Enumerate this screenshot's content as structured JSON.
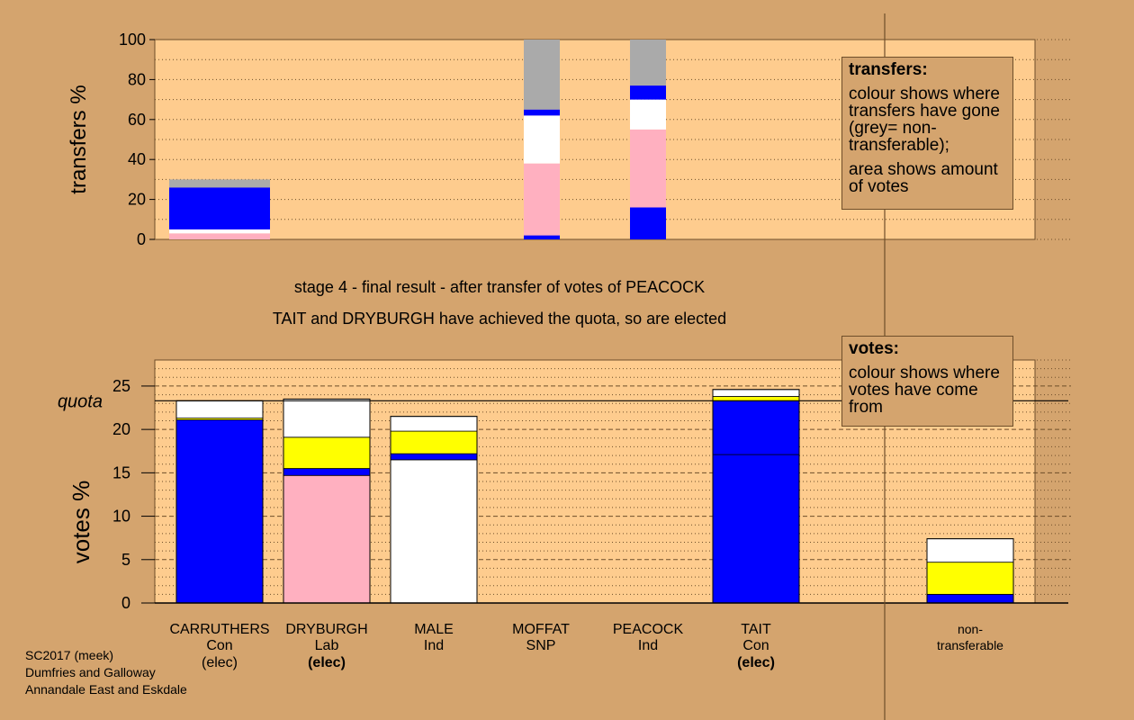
{
  "stage_text": "stage 4 - final result - after transfer of votes of PEACOCK",
  "elected_text": "TAIT and DRYBURGH have achieved the quota, so are elected",
  "legend_transfers": {
    "title": "transfers:",
    "line1": "colour shows where transfers have gone (grey= non-transferable);",
    "line2": "area shows amount of votes"
  },
  "legend_votes": {
    "title": "votes:",
    "line1": "colour shows where votes have come from"
  },
  "footer": {
    "line1": "SC2017 (meek)",
    "line2": "Dumfries and Galloway",
    "line3": "Annandale East and Eskdale"
  },
  "colors": {
    "Con": "#0000ff",
    "Lab": "#ffb0c0",
    "Ind": "#ffffff",
    "SNP": "#ffff00",
    "nontransferable": "#aaaaaa",
    "background": "#d4a46e",
    "plot": "#fecc8e"
  },
  "chart_data": [
    {
      "type": "bar",
      "ylabel": "transfers %",
      "ylim": [
        0,
        100
      ],
      "yticks": [
        0,
        20,
        40,
        60,
        80,
        100
      ],
      "bars": [
        {
          "candidate": "CARRUTHERS",
          "segments": [
            {
              "color": "#ffb0c0",
              "from": 0,
              "to": 3
            },
            {
              "color": "#ffffff",
              "from": 3,
              "to": 5
            },
            {
              "color": "#0000ff",
              "from": 5,
              "to": 26
            },
            {
              "color": "#aaaaaa",
              "from": 26,
              "to": 30
            }
          ]
        },
        {
          "candidate": "MOFFAT",
          "segments": [
            {
              "color": "#0000ff",
              "from": 0,
              "to": 2
            },
            {
              "color": "#ffb0c0",
              "from": 2,
              "to": 38
            },
            {
              "color": "#ffffff",
              "from": 38,
              "to": 62
            },
            {
              "color": "#0000ff",
              "from": 62,
              "to": 65
            },
            {
              "color": "#aaaaaa",
              "from": 65,
              "to": 100
            }
          ]
        },
        {
          "candidate": "PEACOCK",
          "segments": [
            {
              "color": "#0000ff",
              "from": 0,
              "to": 16
            },
            {
              "color": "#ffb0c0",
              "from": 16,
              "to": 55
            },
            {
              "color": "#ffffff",
              "from": 55,
              "to": 70
            },
            {
              "color": "#0000ff",
              "from": 70,
              "to": 77
            },
            {
              "color": "#aaaaaa",
              "from": 77,
              "to": 100
            }
          ]
        }
      ]
    },
    {
      "type": "bar",
      "ylabel": "votes %",
      "ylim": [
        0,
        28
      ],
      "yticks": [
        0,
        5,
        10,
        15,
        20,
        25
      ],
      "quota": 23.3,
      "quota_label": "quota",
      "categories": [
        {
          "name": "CARRUTHERS",
          "party": "Con",
          "status": "(elec)",
          "status_bold": false
        },
        {
          "name": "DRYBURGH",
          "party": "Lab",
          "status": "(elec)",
          "status_bold": true
        },
        {
          "name": "MALE",
          "party": "Ind",
          "status": "",
          "status_bold": false
        },
        {
          "name": "MOFFAT",
          "party": "SNP",
          "status": "",
          "status_bold": false
        },
        {
          "name": "PEACOCK",
          "party": "Ind",
          "status": "",
          "status_bold": false
        },
        {
          "name": "TAIT",
          "party": "Con",
          "status": "(elec)",
          "status_bold": true
        },
        {
          "name": "",
          "party": "",
          "status": "",
          "status_bold": false
        },
        {
          "name": "non-",
          "party": "transferable",
          "status": "",
          "status_bold": false
        }
      ],
      "bars": [
        {
          "candidate": "CARRUTHERS",
          "segments": [
            {
              "color": "#0000ff",
              "from": 0,
              "to": 21.1
            },
            {
              "color": "#ffff00",
              "from": 21.1,
              "to": 21.3
            },
            {
              "color": "#ffffff",
              "from": 21.3,
              "to": 23.3
            }
          ]
        },
        {
          "candidate": "DRYBURGH",
          "segments": [
            {
              "color": "#ffb0c0",
              "from": 0,
              "to": 14.7
            },
            {
              "color": "#0000ff",
              "from": 14.7,
              "to": 15.5
            },
            {
              "color": "#ffff00",
              "from": 15.5,
              "to": 19.1
            },
            {
              "color": "#ffffff",
              "from": 19.1,
              "to": 23.5
            }
          ]
        },
        {
          "candidate": "MALE",
          "segments": [
            {
              "color": "#ffffff",
              "from": 0,
              "to": 16.5
            },
            {
              "color": "#0000ff",
              "from": 16.5,
              "to": 17.2
            },
            {
              "color": "#ffff00",
              "from": 17.2,
              "to": 19.8
            },
            {
              "color": "#ffffff",
              "from": 19.8,
              "to": 21.5
            }
          ]
        },
        {
          "candidate": "MOFFAT",
          "segments": []
        },
        {
          "candidate": "PEACOCK",
          "segments": []
        },
        {
          "candidate": "TAIT",
          "segments": [
            {
              "color": "#0000ff",
              "from": 0,
              "to": 17.1
            },
            {
              "color": "#0000ff",
              "from": 17.1,
              "to": 23.3
            },
            {
              "color": "#ffff00",
              "from": 23.3,
              "to": 23.8
            },
            {
              "color": "#ffffff",
              "from": 23.8,
              "to": 24.6
            }
          ]
        },
        {
          "candidate": "",
          "segments": []
        },
        {
          "candidate": "non-transferable",
          "segments": [
            {
              "color": "#0000ff",
              "from": 0,
              "to": 1.0
            },
            {
              "color": "#ffff00",
              "from": 1.0,
              "to": 4.7
            },
            {
              "color": "#ffffff",
              "from": 4.7,
              "to": 7.4
            }
          ]
        }
      ]
    }
  ]
}
